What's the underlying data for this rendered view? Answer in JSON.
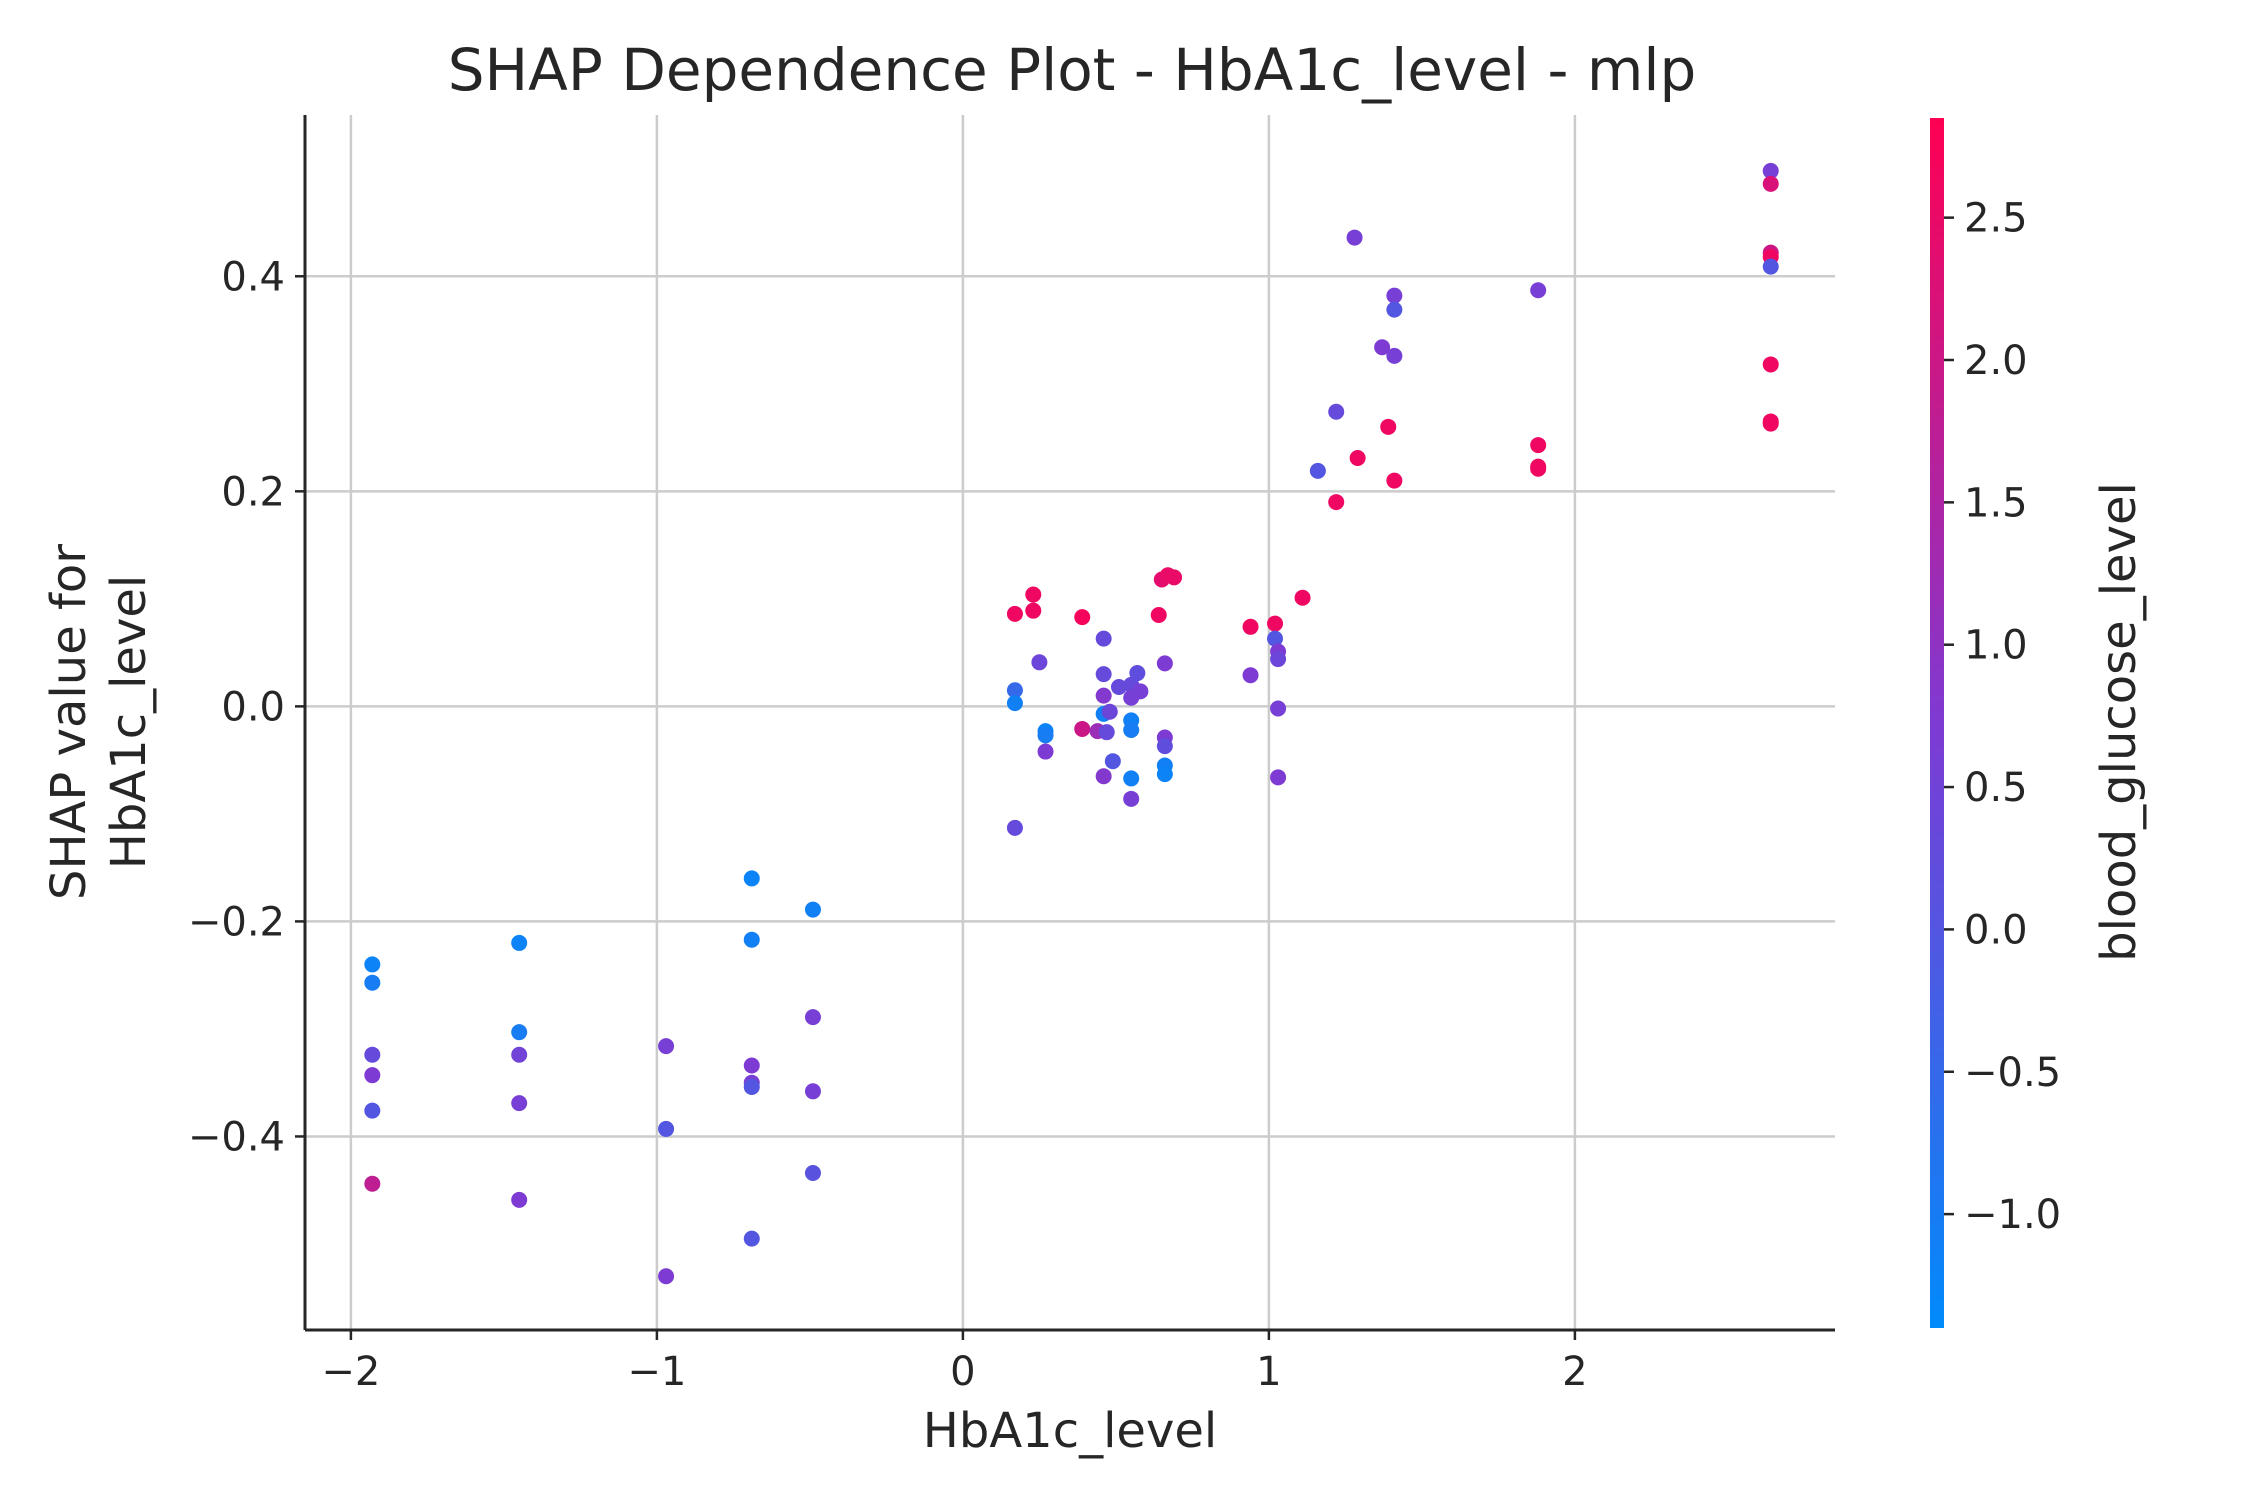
{
  "chart_data": {
    "type": "scatter",
    "title": "SHAP Dependence Plot - HbA1c_level - mlp",
    "xlabel": "HbA1c_level",
    "ylabel_lines": [
      "SHAP value for",
      "HbA1c_level"
    ],
    "xlim": [
      -2.15,
      2.85
    ],
    "ylim": [
      -0.58,
      0.55
    ],
    "xticks": [
      -2,
      -1,
      0,
      1,
      2
    ],
    "xtick_labels": [
      "−2",
      "−1",
      "0",
      "1",
      "2"
    ],
    "yticks": [
      -0.4,
      -0.2,
      0.0,
      0.2,
      0.4
    ],
    "ytick_labels": [
      "−0.4",
      "−0.2",
      "0.0",
      "0.2",
      "0.4"
    ],
    "grid": true,
    "colorbar": {
      "label": "blood_glucose_level",
      "range": [
        -1.4,
        2.85
      ],
      "ticks": [
        -1.0,
        -0.5,
        0.0,
        0.5,
        1.0,
        1.5,
        2.0,
        2.5
      ],
      "tick_labels": [
        "−1.0",
        "−0.5",
        "0.0",
        "0.5",
        "1.0",
        "1.5",
        "2.0",
        "2.5"
      ],
      "colors": {
        "low": "#008bfb",
        "mid": "#7e3ad3",
        "high": "#ff0052"
      }
    },
    "points": [
      {
        "x": -1.93,
        "y": -0.24,
        "c": -1.2
      },
      {
        "x": -1.93,
        "y": -0.257,
        "c": -1.0
      },
      {
        "x": -1.93,
        "y": -0.324,
        "c": 0.3
      },
      {
        "x": -1.93,
        "y": -0.343,
        "c": 0.7
      },
      {
        "x": -1.93,
        "y": -0.376,
        "c": 0.0
      },
      {
        "x": -1.93,
        "y": -0.444,
        "c": 1.8
      },
      {
        "x": -1.45,
        "y": -0.22,
        "c": -1.2
      },
      {
        "x": -1.45,
        "y": -0.303,
        "c": -1.0
      },
      {
        "x": -1.45,
        "y": -0.324,
        "c": 0.5
      },
      {
        "x": -1.45,
        "y": -0.369,
        "c": 0.6
      },
      {
        "x": -1.45,
        "y": -0.459,
        "c": 0.7
      },
      {
        "x": -0.97,
        "y": -0.316,
        "c": 0.6
      },
      {
        "x": -0.97,
        "y": -0.393,
        "c": 0.0
      },
      {
        "x": -0.97,
        "y": -0.53,
        "c": 0.7
      },
      {
        "x": -0.69,
        "y": -0.16,
        "c": -1.2
      },
      {
        "x": -0.69,
        "y": -0.217,
        "c": -1.1
      },
      {
        "x": -0.69,
        "y": -0.334,
        "c": 0.7
      },
      {
        "x": -0.69,
        "y": -0.35,
        "c": 0.6
      },
      {
        "x": -0.69,
        "y": -0.354,
        "c": 0.0
      },
      {
        "x": -0.69,
        "y": -0.495,
        "c": 0.0
      },
      {
        "x": -0.49,
        "y": -0.189,
        "c": -1.1
      },
      {
        "x": -0.49,
        "y": -0.289,
        "c": 0.6
      },
      {
        "x": -0.49,
        "y": -0.358,
        "c": 0.6
      },
      {
        "x": -0.49,
        "y": -0.434,
        "c": 0.1
      },
      {
        "x": 0.17,
        "y": 0.086,
        "c": 2.6
      },
      {
        "x": 0.17,
        "y": 0.015,
        "c": -0.5
      },
      {
        "x": 0.17,
        "y": 0.003,
        "c": -1.1
      },
      {
        "x": 0.17,
        "y": -0.113,
        "c": 0.3
      },
      {
        "x": 0.23,
        "y": 0.104,
        "c": 2.6
      },
      {
        "x": 0.23,
        "y": 0.089,
        "c": 2.6
      },
      {
        "x": 0.25,
        "y": 0.041,
        "c": 0.4
      },
      {
        "x": 0.27,
        "y": -0.023,
        "c": -1.2
      },
      {
        "x": 0.27,
        "y": -0.027,
        "c": -1.0
      },
      {
        "x": 0.27,
        "y": -0.042,
        "c": 0.7
      },
      {
        "x": 0.39,
        "y": 0.083,
        "c": 2.7
      },
      {
        "x": 0.39,
        "y": -0.021,
        "c": 2.0
      },
      {
        "x": 0.44,
        "y": -0.023,
        "c": 1.2
      },
      {
        "x": 0.46,
        "y": 0.063,
        "c": 0.3
      },
      {
        "x": 0.46,
        "y": 0.03,
        "c": 0.3
      },
      {
        "x": 0.46,
        "y": 0.01,
        "c": 0.8
      },
      {
        "x": 0.46,
        "y": -0.007,
        "c": -1.1
      },
      {
        "x": 0.46,
        "y": -0.065,
        "c": 0.8
      },
      {
        "x": 0.47,
        "y": -0.024,
        "c": 0.3
      },
      {
        "x": 0.48,
        "y": -0.005,
        "c": 0.4
      },
      {
        "x": 0.49,
        "y": -0.051,
        "c": 0.0
      },
      {
        "x": 0.51,
        "y": 0.018,
        "c": 0.3
      },
      {
        "x": 0.55,
        "y": 0.02,
        "c": 0.3
      },
      {
        "x": 0.55,
        "y": 0.008,
        "c": 0.6
      },
      {
        "x": 0.55,
        "y": -0.013,
        "c": -1.1
      },
      {
        "x": 0.55,
        "y": -0.022,
        "c": -1.0
      },
      {
        "x": 0.55,
        "y": -0.067,
        "c": -1.1
      },
      {
        "x": 0.55,
        "y": -0.086,
        "c": 0.6
      },
      {
        "x": 0.57,
        "y": 0.031,
        "c": 0.2
      },
      {
        "x": 0.58,
        "y": 0.014,
        "c": 0.6
      },
      {
        "x": 0.64,
        "y": 0.085,
        "c": 2.6
      },
      {
        "x": 0.65,
        "y": 0.118,
        "c": 2.4
      },
      {
        "x": 0.66,
        "y": 0.04,
        "c": 0.7
      },
      {
        "x": 0.66,
        "y": -0.029,
        "c": 0.7
      },
      {
        "x": 0.66,
        "y": -0.037,
        "c": 0.2
      },
      {
        "x": 0.66,
        "y": -0.055,
        "c": -1.1
      },
      {
        "x": 0.66,
        "y": -0.063,
        "c": -1.2
      },
      {
        "x": 0.67,
        "y": 0.122,
        "c": 2.5
      },
      {
        "x": 0.69,
        "y": 0.12,
        "c": 2.5
      },
      {
        "x": 0.94,
        "y": 0.074,
        "c": 2.6
      },
      {
        "x": 0.94,
        "y": 0.029,
        "c": 0.7
      },
      {
        "x": 1.02,
        "y": 0.077,
        "c": 2.6
      },
      {
        "x": 1.02,
        "y": 0.063,
        "c": 0.0
      },
      {
        "x": 1.03,
        "y": 0.051,
        "c": 0.7
      },
      {
        "x": 1.03,
        "y": 0.044,
        "c": 0.4
      },
      {
        "x": 1.03,
        "y": -0.002,
        "c": 0.6
      },
      {
        "x": 1.03,
        "y": -0.066,
        "c": 0.7
      },
      {
        "x": 1.11,
        "y": 0.101,
        "c": 2.6
      },
      {
        "x": 1.16,
        "y": 0.219,
        "c": 0.0
      },
      {
        "x": 1.22,
        "y": 0.274,
        "c": 0.3
      },
      {
        "x": 1.22,
        "y": 0.19,
        "c": 2.6
      },
      {
        "x": 1.28,
        "y": 0.436,
        "c": 0.6
      },
      {
        "x": 1.29,
        "y": 0.231,
        "c": 2.6
      },
      {
        "x": 1.37,
        "y": 0.334,
        "c": 0.7
      },
      {
        "x": 1.39,
        "y": 0.26,
        "c": 2.6
      },
      {
        "x": 1.41,
        "y": 0.382,
        "c": 0.6
      },
      {
        "x": 1.41,
        "y": 0.369,
        "c": 0.0
      },
      {
        "x": 1.41,
        "y": 0.326,
        "c": 0.6
      },
      {
        "x": 1.41,
        "y": 0.21,
        "c": 2.6
      },
      {
        "x": 1.88,
        "y": 0.387,
        "c": 0.6
      },
      {
        "x": 1.88,
        "y": 0.243,
        "c": 2.6
      },
      {
        "x": 1.88,
        "y": 0.223,
        "c": 2.6
      },
      {
        "x": 1.88,
        "y": 0.221,
        "c": 2.6
      },
      {
        "x": 2.64,
        "y": 0.498,
        "c": 0.6
      },
      {
        "x": 2.64,
        "y": 0.486,
        "c": 2.2
      },
      {
        "x": 2.64,
        "y": 0.422,
        "c": 2.0
      },
      {
        "x": 2.64,
        "y": 0.418,
        "c": 2.6
      },
      {
        "x": 2.64,
        "y": 0.409,
        "c": 0.0
      },
      {
        "x": 2.64,
        "y": 0.318,
        "c": 2.6
      },
      {
        "x": 2.64,
        "y": 0.265,
        "c": 2.6
      },
      {
        "x": 2.64,
        "y": 0.263,
        "c": 2.6
      }
    ]
  }
}
